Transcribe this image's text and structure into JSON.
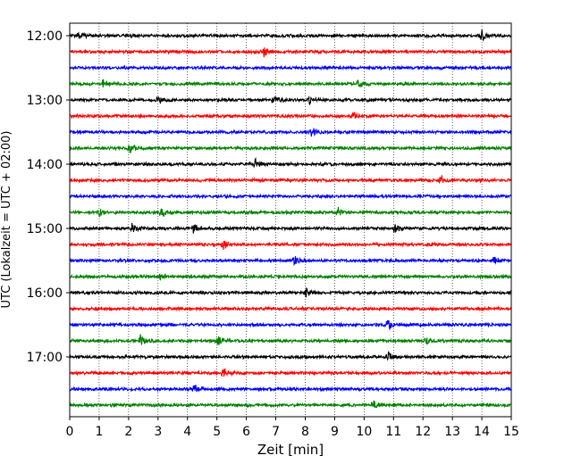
{
  "chart_data": {
    "type": "line",
    "title": "",
    "xlabel": "Zeit  [min]",
    "ylabel": "UTC (Lokalzeit = UTC + 02:00)",
    "xlim": [
      0,
      15
    ],
    "x_ticks": [
      "0",
      "1",
      "2",
      "3",
      "4",
      "5",
      "6",
      "7",
      "8",
      "9",
      "10",
      "11",
      "12",
      "13",
      "14",
      "15"
    ],
    "y_tick_labels": [
      "12:00",
      "13:00",
      "14:00",
      "15:00",
      "16:00",
      "17:00"
    ],
    "grid": "vertical dotted at each minute",
    "line_colors": [
      "#000000",
      "#ff0000",
      "#0000ff",
      "#008000"
    ],
    "traces": [
      {
        "time": "12:00",
        "color": "#000000",
        "events_min": [
          0.3,
          14.0
        ]
      },
      {
        "time": "12:15",
        "color": "#ff0000",
        "events_min": [
          6.6
        ]
      },
      {
        "time": "12:30",
        "color": "#0000ff",
        "events_min": []
      },
      {
        "time": "12:45",
        "color": "#008000",
        "events_min": [
          1.1,
          9.8
        ]
      },
      {
        "time": "13:00",
        "color": "#000000",
        "events_min": [
          3.0,
          6.9,
          8.1
        ]
      },
      {
        "time": "13:15",
        "color": "#ff0000",
        "events_min": [
          9.6
        ]
      },
      {
        "time": "13:30",
        "color": "#0000ff",
        "events_min": [
          8.2
        ]
      },
      {
        "time": "13:45",
        "color": "#008000",
        "events_min": [
          2.0
        ]
      },
      {
        "time": "14:00",
        "color": "#000000",
        "events_min": [
          6.3
        ]
      },
      {
        "time": "14:15",
        "color": "#ff0000",
        "events_min": [
          12.6
        ]
      },
      {
        "time": "14:30",
        "color": "#0000ff",
        "events_min": []
      },
      {
        "time": "14:45",
        "color": "#008000",
        "events_min": [
          1.0,
          3.1,
          9.1
        ]
      },
      {
        "time": "15:00",
        "color": "#000000",
        "events_min": [
          2.1,
          4.2,
          11.0
        ]
      },
      {
        "time": "15:15",
        "color": "#ff0000",
        "events_min": [
          5.2
        ]
      },
      {
        "time": "15:30",
        "color": "#0000ff",
        "events_min": [
          7.6,
          14.4
        ]
      },
      {
        "time": "15:45",
        "color": "#008000",
        "events_min": [
          3.1
        ]
      },
      {
        "time": "16:00",
        "color": "#000000",
        "events_min": [
          8.0
        ]
      },
      {
        "time": "16:15",
        "color": "#ff0000",
        "events_min": []
      },
      {
        "time": "16:30",
        "color": "#0000ff",
        "events_min": [
          10.8
        ]
      },
      {
        "time": "16:45",
        "color": "#008000",
        "events_min": [
          2.4,
          5.0,
          12.1
        ]
      },
      {
        "time": "17:00",
        "color": "#000000",
        "events_min": [
          10.8
        ]
      },
      {
        "time": "17:15",
        "color": "#ff0000",
        "events_min": [
          5.2
        ]
      },
      {
        "time": "17:30",
        "color": "#0000ff",
        "events_min": [
          4.2
        ]
      },
      {
        "time": "17:45",
        "color": "#008000",
        "events_min": [
          10.3
        ]
      }
    ]
  }
}
